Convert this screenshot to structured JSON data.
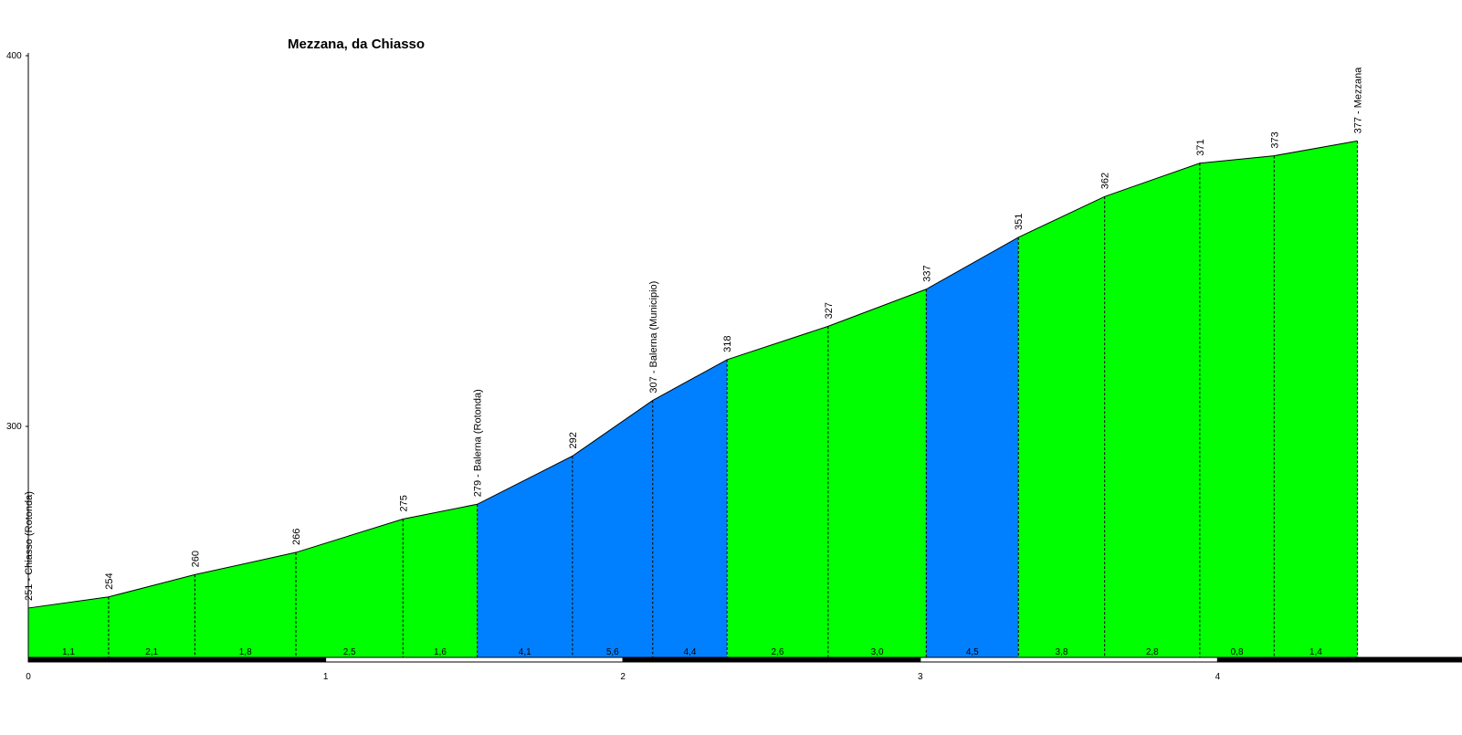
{
  "chart_data": {
    "type": "area",
    "title": "Mezzana, da Chiasso",
    "xlabel": "",
    "ylabel": "",
    "xlim": [
      0,
      4.73
    ],
    "ylim": [
      236,
      400
    ],
    "x_ticks": [
      "0",
      "1",
      "2",
      "3",
      "4"
    ],
    "y_ticks": [
      "300",
      "400"
    ],
    "grid": false,
    "colors": {
      "easy": "#00ff00",
      "steep": "#0080ff",
      "outline": "#000000",
      "background": "#ffffff"
    },
    "points": [
      {
        "x": 0.0,
        "elevation": 251,
        "label": "251 - Chiasso (Rotonda)"
      },
      {
        "x": 0.27,
        "elevation": 254,
        "label": "254"
      },
      {
        "x": 0.56,
        "elevation": 260,
        "label": "260"
      },
      {
        "x": 0.9,
        "elevation": 266,
        "label": "266"
      },
      {
        "x": 1.26,
        "elevation": 275,
        "label": "275"
      },
      {
        "x": 1.51,
        "elevation": 279,
        "label": "279 - Balerna (Rotonda)"
      },
      {
        "x": 1.83,
        "elevation": 292,
        "label": "292"
      },
      {
        "x": 2.1,
        "elevation": 307,
        "label": "307 - Balerna (Municipio)"
      },
      {
        "x": 2.35,
        "elevation": 318,
        "label": "318"
      },
      {
        "x": 2.69,
        "elevation": 327,
        "label": "327"
      },
      {
        "x": 3.02,
        "elevation": 337,
        "label": "337"
      },
      {
        "x": 3.33,
        "elevation": 351,
        "label": "351"
      },
      {
        "x": 3.62,
        "elevation": 362,
        "label": "362"
      },
      {
        "x": 3.94,
        "elevation": 371,
        "label": "371"
      },
      {
        "x": 4.19,
        "elevation": 373,
        "label": "373"
      },
      {
        "x": 4.47,
        "elevation": 377,
        "label": "377 - Mezzana"
      }
    ],
    "segments": [
      {
        "gradient": "1,1",
        "category": "easy"
      },
      {
        "gradient": "2,1",
        "category": "easy"
      },
      {
        "gradient": "1,8",
        "category": "easy"
      },
      {
        "gradient": "2,5",
        "category": "easy"
      },
      {
        "gradient": "1,6",
        "category": "easy"
      },
      {
        "gradient": "4,1",
        "category": "steep"
      },
      {
        "gradient": "5,6",
        "category": "steep"
      },
      {
        "gradient": "4,4",
        "category": "steep"
      },
      {
        "gradient": "2,6",
        "category": "easy"
      },
      {
        "gradient": "3,0",
        "category": "easy"
      },
      {
        "gradient": "4,5",
        "category": "steep"
      },
      {
        "gradient": "3,8",
        "category": "easy"
      },
      {
        "gradient": "2,8",
        "category": "easy"
      },
      {
        "gradient": "0,8",
        "category": "easy"
      },
      {
        "gradient": "1,4",
        "category": "easy"
      }
    ]
  }
}
